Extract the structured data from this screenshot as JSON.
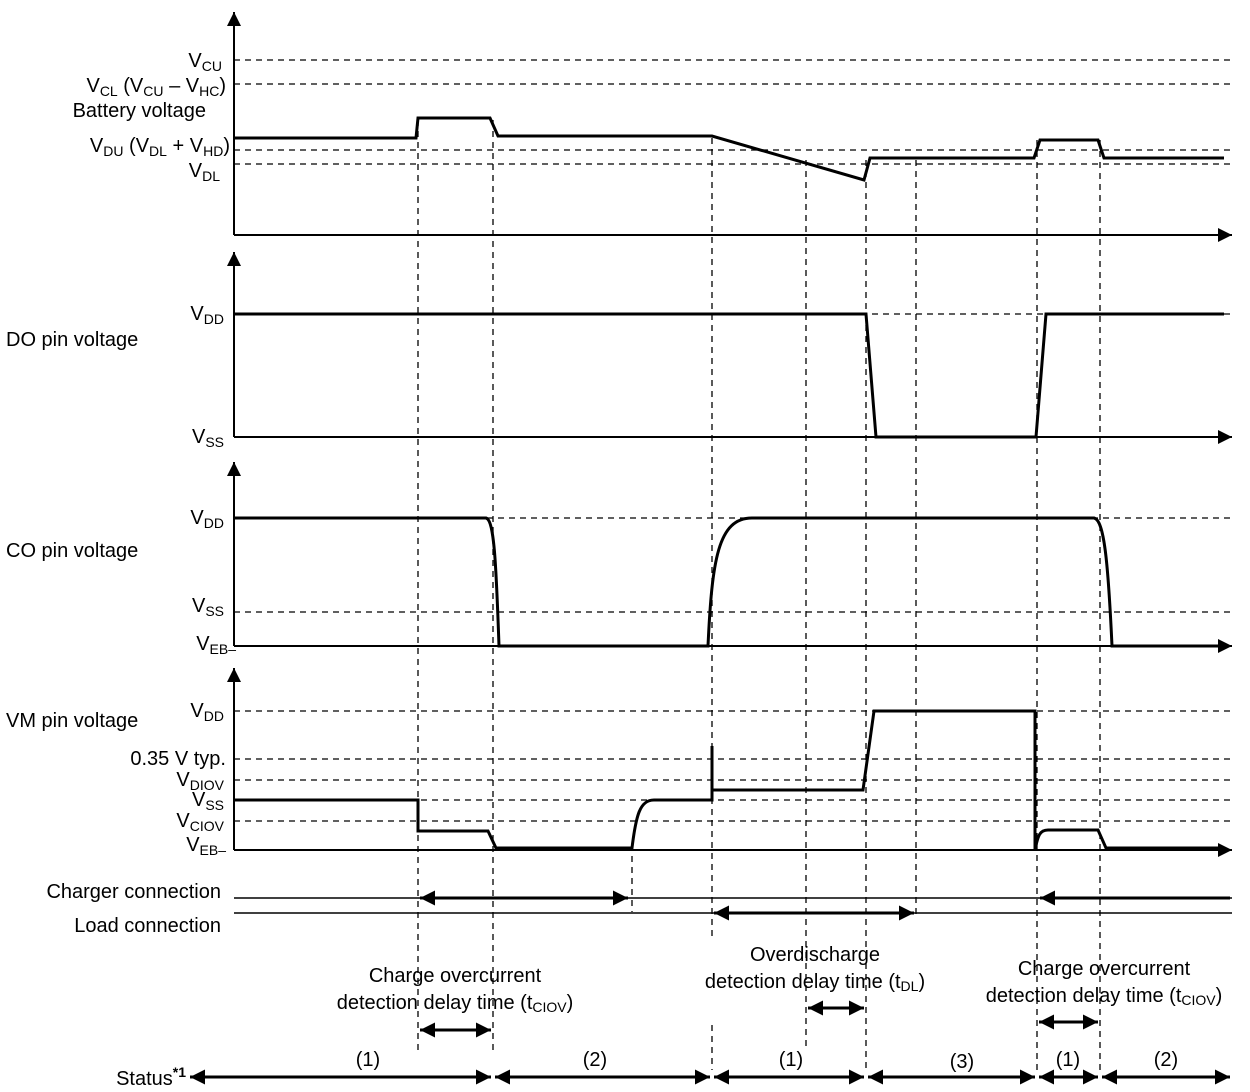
{
  "battery": {
    "title": "Battery voltage",
    "vcu": "V",
    "vcu_sub": "CU",
    "vcl": "V",
    "vcl_sub": "CL",
    "vcl_rest1": " (V",
    "vcl_sub2": "CU",
    "vcl_rest2": " – V",
    "vcl_sub3": "HC",
    "vcl_rest3": ")",
    "vdu": "V",
    "vdu_sub": "DU",
    "vdu_rest1": " (V",
    "vdu_sub2": "DL",
    "vdu_rest2": " + V",
    "vdu_sub3": "HD",
    "vdu_rest3": ")",
    "vdl": "V",
    "vdl_sub": "DL"
  },
  "do_pin": {
    "title": "DO pin voltage",
    "vdd": "V",
    "vdd_sub": "DD",
    "vss": "V",
    "vss_sub": "SS"
  },
  "co_pin": {
    "title": "CO pin voltage",
    "vdd": "V",
    "vdd_sub": "DD",
    "vss": "V",
    "vss_sub": "SS",
    "veb": "V",
    "veb_sub": "EB–"
  },
  "vm_pin": {
    "title": "VM pin voltage",
    "vdd": "V",
    "vdd_sub": "DD",
    "typ": "0.35 V typ.",
    "vdiov": "V",
    "vdiov_sub": "DIOV",
    "vss": "V",
    "vss_sub": "SS",
    "vciov": "V",
    "vciov_sub": "CIOV",
    "veb": "V",
    "veb_sub": "EB–"
  },
  "connections": {
    "charger": "Charger connection",
    "load": "Load connection"
  },
  "delays": {
    "charge1_line1": "Charge overcurrent",
    "charge1_line2": "detection delay time (t",
    "charge1_sub": "CIOV",
    "charge1_end": ")",
    "over_line1": "Overdischarge",
    "over_line2": "detection delay time (t",
    "over_sub": "DL",
    "over_end": ")",
    "charge2_line1": "Charge overcurrent",
    "charge2_line2": "detection delay time (t",
    "charge2_sub": "CIOV",
    "charge2_end": ")"
  },
  "status": {
    "label": "Status",
    "footnote": "*1",
    "segments": [
      "(1)",
      "(2)",
      "(1)",
      "(3)",
      "(1)",
      "(2)"
    ]
  }
}
